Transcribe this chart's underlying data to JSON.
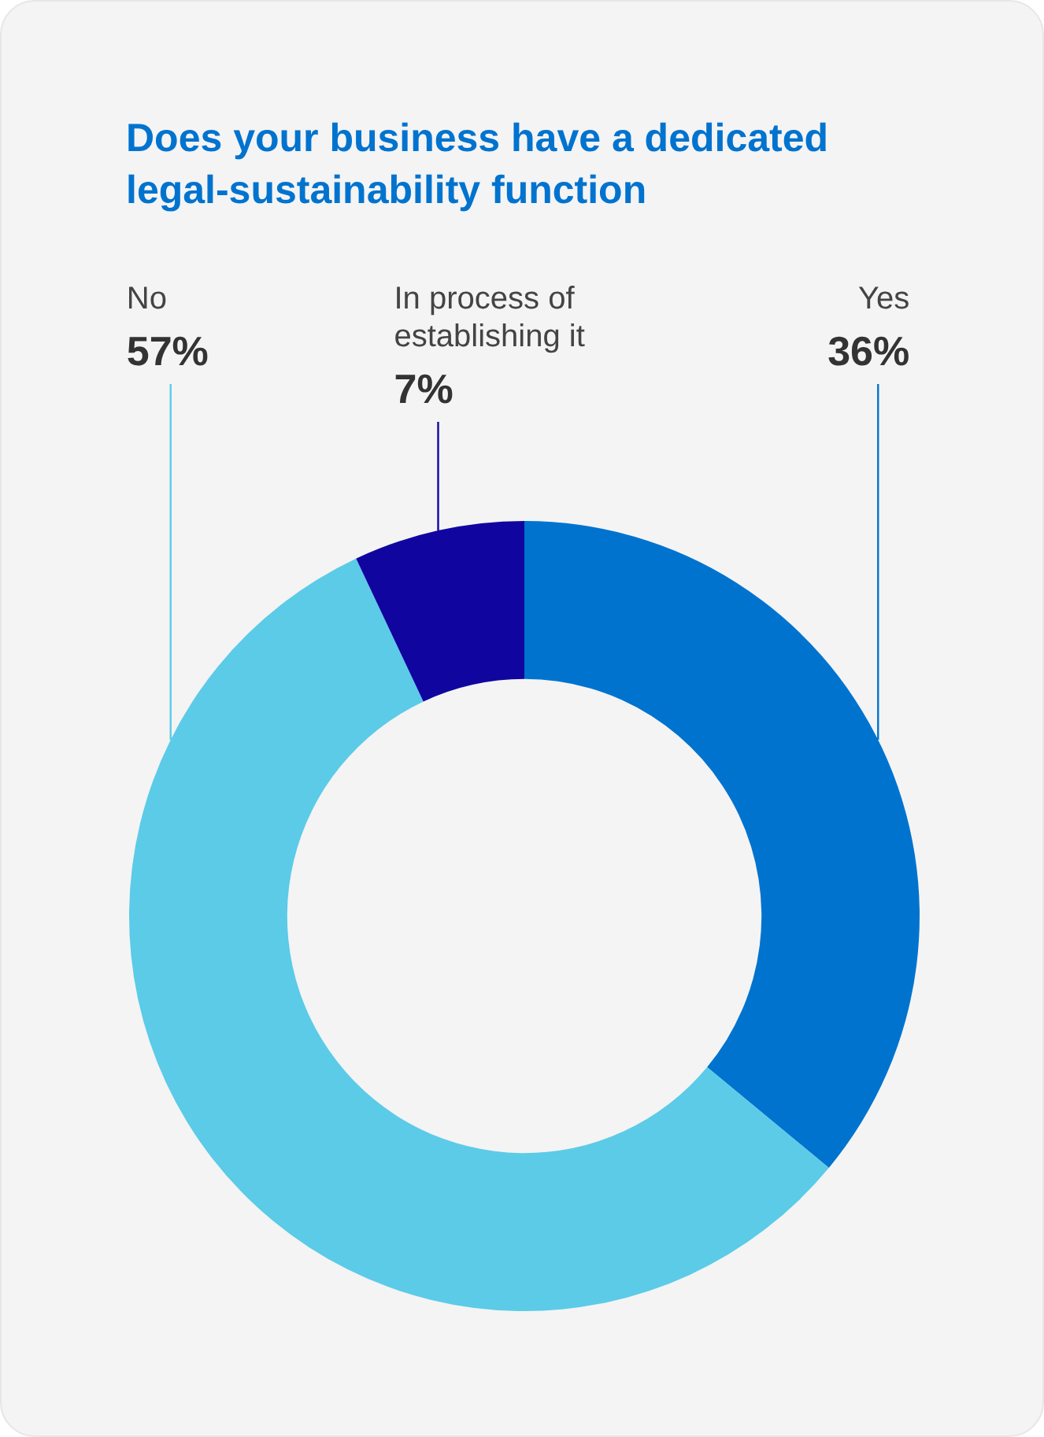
{
  "chart_data": {
    "type": "donut",
    "title": "Does your business have a dedicated legal-sustainability function",
    "categories": [
      "Yes",
      "No",
      "In process of establishing it"
    ],
    "values": [
      36,
      57,
      7
    ],
    "colors": [
      "#0073cf",
      "#5bcbe8",
      "#10069f"
    ],
    "value_labels": [
      "36%",
      "57%",
      "7%"
    ],
    "legend": false
  }
}
